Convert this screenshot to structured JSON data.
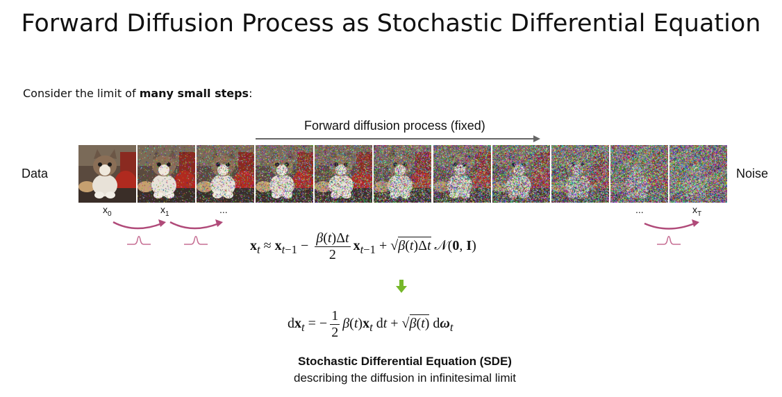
{
  "title": "Forward Diffusion Process as Stochastic Differential Equation",
  "intro": {
    "prefix": "Consider the limit of ",
    "bold": "many small steps",
    "suffix": ":"
  },
  "process_label": "Forward diffusion process (fixed)",
  "left_label": "Data",
  "right_label": "Noise",
  "frames": [
    {
      "noise": 0.0
    },
    {
      "noise": 0.05
    },
    {
      "noise": 0.18
    },
    {
      "noise": 0.3
    },
    {
      "noise": 0.36
    },
    {
      "noise": 0.48
    },
    {
      "noise": 0.58
    },
    {
      "noise": 0.68
    },
    {
      "noise": 0.8
    },
    {
      "noise": 0.9
    },
    {
      "noise": 1.0
    }
  ],
  "step_labels": {
    "x0": "x",
    "x0_sub": "0",
    "x1": "x",
    "x1_sub": "1",
    "dots_left": "...",
    "dots_right": "...",
    "xT": "x",
    "xT_sub": "T"
  },
  "colors": {
    "arrow": "#b04a79",
    "gaussian": "#c66e93",
    "process_arrow": "#666666",
    "down_arrow": "#76b82a"
  },
  "sde_title": "Stochastic Differential Equation (SDE)",
  "sde_desc": "describing the diffusion in infinitesimal limit"
}
